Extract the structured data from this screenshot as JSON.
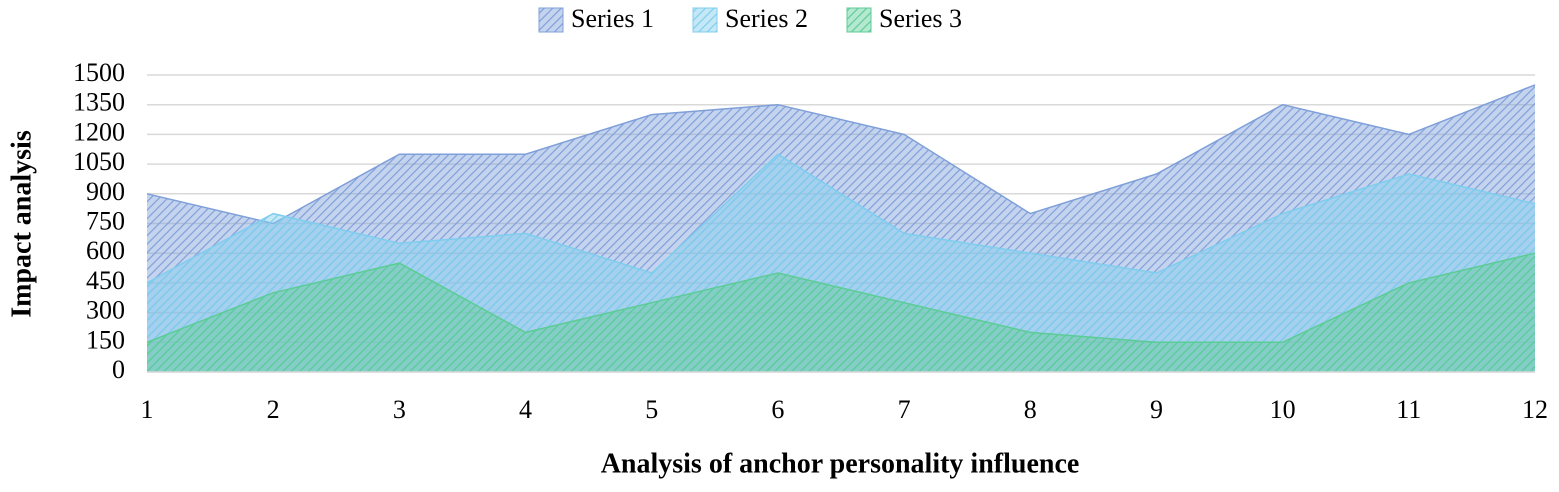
{
  "chart_data": {
    "type": "area",
    "x_label": "Analysis of anchor personality influence",
    "y_label": "Impact analysis",
    "x": [
      1,
      2,
      3,
      4,
      5,
      6,
      7,
      8,
      9,
      10,
      11,
      12
    ],
    "xlim": [
      1,
      12
    ],
    "xticks": [
      1,
      2,
      3,
      4,
      5,
      6,
      7,
      8,
      9,
      10,
      11,
      12
    ],
    "ylim": [
      0,
      1500
    ],
    "yticks": [
      0,
      150,
      300,
      450,
      600,
      750,
      900,
      1050,
      1200,
      1350,
      1500
    ],
    "grid": true,
    "legend": "top",
    "series": [
      {
        "name": "Series 1",
        "color": "#7f9fd9",
        "values": [
          900,
          750,
          1100,
          1100,
          1300,
          1350,
          1200,
          800,
          1000,
          1350,
          1200,
          1450
        ]
      },
      {
        "name": "Series 2",
        "color": "#7fcdee",
        "values": [
          450,
          800,
          650,
          700,
          500,
          1100,
          700,
          600,
          500,
          800,
          1000,
          850
        ]
      },
      {
        "name": "Series 3",
        "color": "#5ccc96",
        "values": [
          150,
          400,
          550,
          200,
          350,
          500,
          350,
          200,
          150,
          150,
          450,
          600
        ]
      }
    ]
  }
}
